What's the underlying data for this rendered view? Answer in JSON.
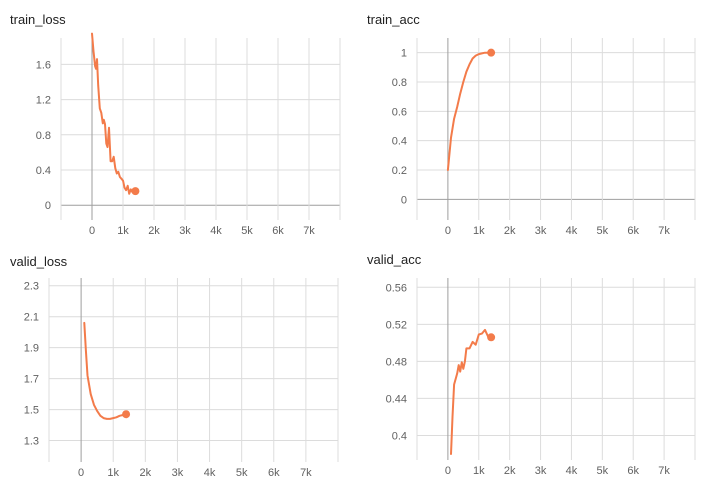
{
  "chart_data": [
    {
      "type": "line",
      "title": "train_loss",
      "xlim": [
        -1000,
        8000
      ],
      "ylim": [
        -0.1,
        1.9
      ],
      "xticks": [
        0,
        1000,
        2000,
        3000,
        4000,
        5000,
        6000,
        7000
      ],
      "xtick_labels": [
        "0",
        "1k",
        "2k",
        "3k",
        "4k",
        "5k",
        "6k",
        "7k"
      ],
      "yticks": [
        0,
        0.4,
        0.8,
        1.2,
        1.6
      ],
      "ytick_labels": [
        "0",
        "0.4",
        "0.8",
        "1.2",
        "1.6"
      ],
      "grid": true,
      "color": "#f37b4a",
      "series": [
        {
          "x": [
            0,
            50,
            100,
            130,
            160,
            200,
            250,
            300,
            350,
            380,
            420,
            460,
            500,
            550,
            600,
            650,
            700,
            750,
            800,
            850,
            900,
            950,
            1000,
            1050,
            1100,
            1150,
            1200,
            1250,
            1300,
            1350,
            1400
          ],
          "y": [
            1.95,
            1.75,
            1.58,
            1.55,
            1.66,
            1.36,
            1.1,
            1.05,
            0.93,
            0.97,
            0.92,
            0.7,
            0.66,
            0.88,
            0.5,
            0.5,
            0.55,
            0.42,
            0.36,
            0.38,
            0.32,
            0.3,
            0.28,
            0.2,
            0.17,
            0.22,
            0.13,
            0.18,
            0.15,
            0.16,
            0.16
          ]
        }
      ]
    },
    {
      "type": "line",
      "title": "train_acc",
      "xlim": [
        -1000,
        8000
      ],
      "ylim": [
        -0.1,
        1.1
      ],
      "xticks": [
        0,
        1000,
        2000,
        3000,
        4000,
        5000,
        6000,
        7000
      ],
      "xtick_labels": [
        "0",
        "1k",
        "2k",
        "3k",
        "4k",
        "5k",
        "6k",
        "7k"
      ],
      "yticks": [
        0,
        0.2,
        0.4,
        0.6,
        0.8,
        1
      ],
      "ytick_labels": [
        "0",
        "0.2",
        "0.4",
        "0.6",
        "0.8",
        "1"
      ],
      "grid": true,
      "color": "#f37b4a",
      "series": [
        {
          "x": [
            0,
            100,
            200,
            300,
            400,
            500,
            600,
            700,
            800,
            900,
            1000,
            1100,
            1200,
            1300,
            1400
          ],
          "y": [
            0.2,
            0.42,
            0.55,
            0.63,
            0.72,
            0.8,
            0.87,
            0.92,
            0.96,
            0.98,
            0.99,
            0.995,
            1.0,
            1.0,
            1.0
          ]
        }
      ]
    },
    {
      "type": "line",
      "title": "valid_loss",
      "xlim": [
        -1000,
        8000
      ],
      "ylim": [
        1.2,
        2.35
      ],
      "xticks": [
        0,
        1000,
        2000,
        3000,
        4000,
        5000,
        6000,
        7000
      ],
      "xtick_labels": [
        "0",
        "1k",
        "2k",
        "3k",
        "4k",
        "5k",
        "6k",
        "7k"
      ],
      "yticks": [
        1.3,
        1.5,
        1.7,
        1.9,
        2.1,
        2.3
      ],
      "ytick_labels": [
        "1.3",
        "1.5",
        "1.7",
        "1.9",
        "2.1",
        "2.3"
      ],
      "grid": true,
      "color": "#f37b4a",
      "series": [
        {
          "x": [
            100,
            150,
            200,
            300,
            400,
            500,
            600,
            700,
            800,
            900,
            1000,
            1100,
            1200,
            1300,
            1400
          ],
          "y": [
            2.06,
            1.88,
            1.72,
            1.6,
            1.53,
            1.49,
            1.46,
            1.445,
            1.44,
            1.44,
            1.445,
            1.45,
            1.46,
            1.465,
            1.47
          ]
        }
      ]
    },
    {
      "type": "line",
      "title": "valid_acc",
      "xlim": [
        -1000,
        8000
      ],
      "ylim": [
        0.38,
        0.57
      ],
      "xticks": [
        0,
        1000,
        2000,
        3000,
        4000,
        5000,
        6000,
        7000
      ],
      "xtick_labels": [
        "0",
        "1k",
        "2k",
        "3k",
        "4k",
        "5k",
        "6k",
        "7k"
      ],
      "yticks": [
        0.4,
        0.44,
        0.48,
        0.52,
        0.56
      ],
      "ytick_labels": [
        "0.4",
        "0.44",
        "0.48",
        "0.52",
        "0.56"
      ],
      "grid": true,
      "color": "#f37b4a",
      "series": [
        {
          "x": [
            100,
            150,
            200,
            300,
            350,
            400,
            450,
            500,
            550,
            600,
            700,
            800,
            900,
            1000,
            1100,
            1200,
            1300,
            1400
          ],
          "y": [
            0.38,
            0.42,
            0.455,
            0.467,
            0.476,
            0.469,
            0.479,
            0.472,
            0.48,
            0.494,
            0.494,
            0.501,
            0.498,
            0.509,
            0.51,
            0.514,
            0.507,
            0.506
          ]
        }
      ]
    }
  ]
}
